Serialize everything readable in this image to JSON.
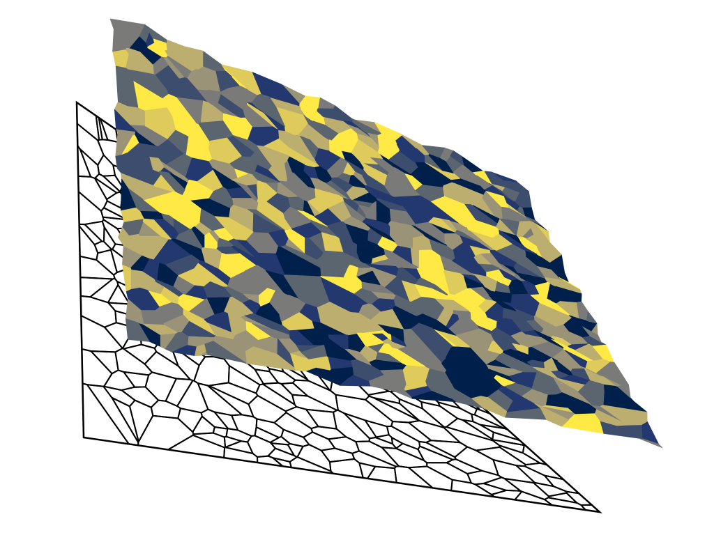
{
  "scene": {
    "background_color": "#ffffff",
    "wireframe": {
      "description_free": true,
      "line_color": "#000000",
      "fill_color": "#ffffff"
    },
    "surface": {
      "colormap": "cividis",
      "colors": [
        "#00204c",
        "#23386f",
        "#3c4d6e",
        "#5a6570",
        "#7a7b78",
        "#9b9377",
        "#bcae6e",
        "#dfcb5c",
        "#ffe945"
      ]
    }
  }
}
